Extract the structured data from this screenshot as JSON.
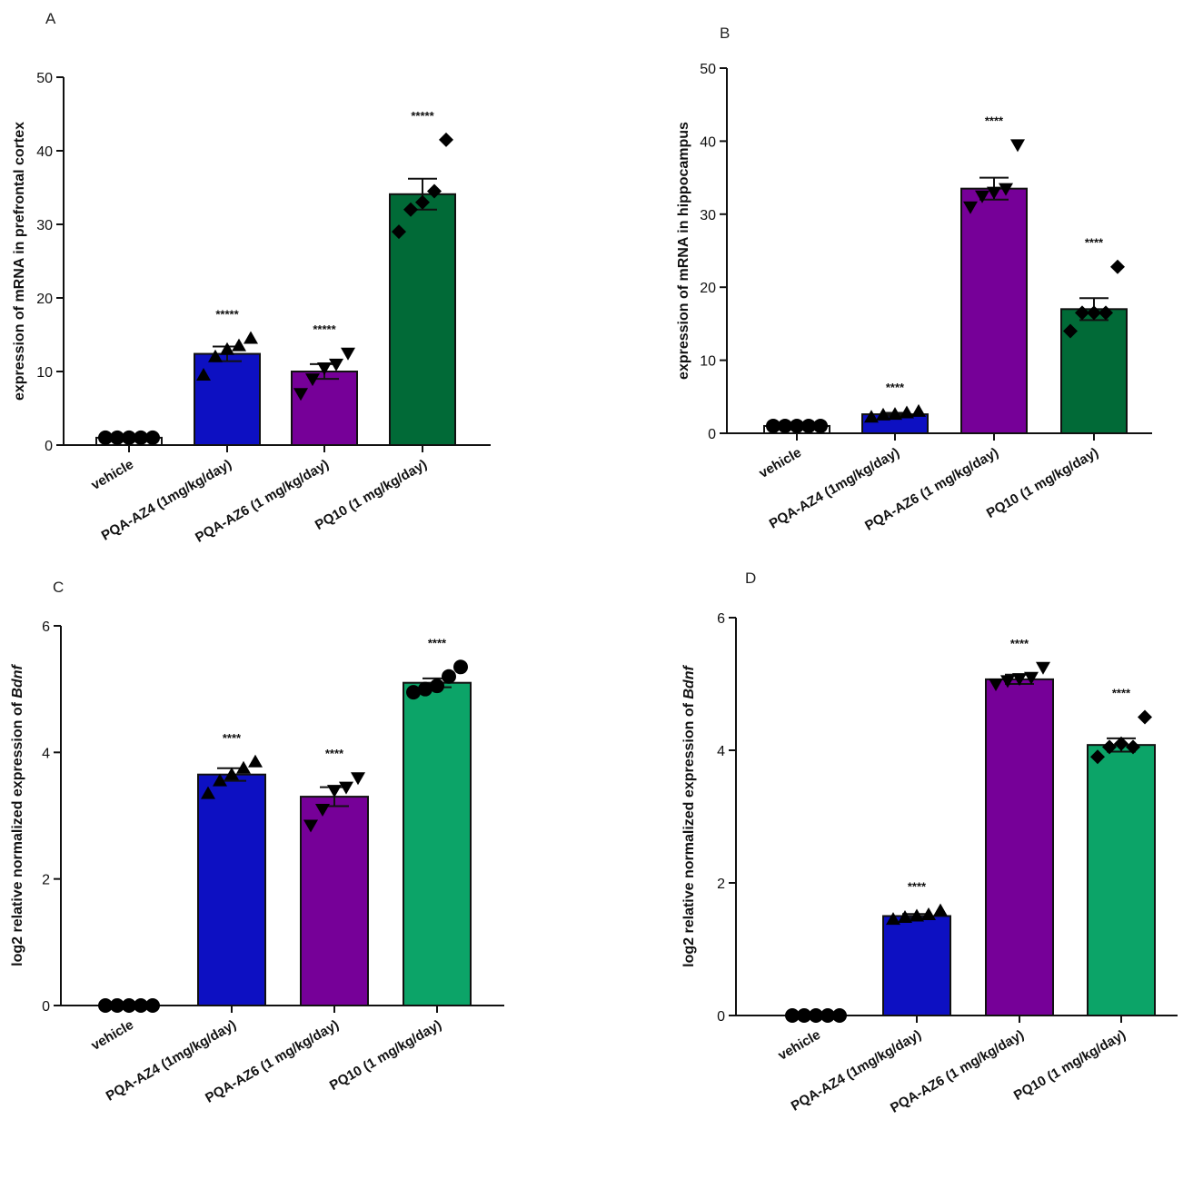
{
  "figure": {
    "colors": {
      "vehicle": "#ffffff",
      "blue": "#0d10c2",
      "purple": "#760098",
      "dark_green": "#016a37",
      "green": "#0ca468"
    }
  },
  "chart_data": [
    {
      "panel": "A",
      "type": "bar",
      "ylabel": "expression of mRNA in prefrontal cortex",
      "ylabel_italic_suffix": "",
      "ylim": [
        0,
        50
      ],
      "yticks": [
        0,
        10,
        20,
        30,
        40,
        50
      ],
      "categories": [
        "vehicle",
        "PQA-AZ4 (1mg/kg/day)",
        "PQA-AZ6 (1 mg/kg/day)",
        "PQ10 (1 mg/kg/day)"
      ],
      "values": [
        1,
        12.4,
        10,
        34.1
      ],
      "sem": [
        0,
        1,
        1,
        2.1
      ],
      "significance": [
        "",
        "*****",
        "*****",
        "*****"
      ],
      "bar_colors": [
        "#ffffff",
        "#0d10c2",
        "#760098",
        "#016a37"
      ],
      "markers": [
        "circle",
        "triangle-up",
        "triangle-down",
        "diamond"
      ],
      "points": [
        [
          1,
          1,
          1,
          1,
          1
        ],
        [
          9.5,
          12,
          13,
          13.5,
          14.5
        ],
        [
          7,
          9,
          10.5,
          11,
          12.5
        ],
        [
          29,
          32,
          33,
          34.5,
          41.5
        ]
      ]
    },
    {
      "panel": "B",
      "type": "bar",
      "ylabel": "expression of mRNA in hippocampus",
      "ylabel_italic_suffix": "",
      "ylim": [
        0,
        50
      ],
      "yticks": [
        0,
        10,
        20,
        30,
        40,
        50
      ],
      "categories": [
        "vehicle",
        "PQA-AZ4 (1mg/kg/day)",
        "PQA-AZ6 (1 mg/kg/day)",
        "PQ10 (1 mg/kg/day)"
      ],
      "values": [
        1,
        2.6,
        33.5,
        17
      ],
      "sem": [
        0,
        0.2,
        1.5,
        1.5
      ],
      "significance": [
        "",
        "****",
        "****",
        "****"
      ],
      "bar_colors": [
        "#ffffff",
        "#0d10c2",
        "#760098",
        "#016a37"
      ],
      "markers": [
        "circle",
        "triangle-up",
        "triangle-down",
        "diamond"
      ],
      "points": [
        [
          1,
          1,
          1,
          1,
          1
        ],
        [
          2.2,
          2.5,
          2.6,
          2.8,
          3
        ],
        [
          31,
          32.5,
          33,
          33.5,
          39.5
        ],
        [
          14,
          16.5,
          16.5,
          16.5,
          22.8
        ]
      ]
    },
    {
      "panel": "C",
      "type": "bar",
      "ylabel": "log2 relative normalized expression of ",
      "ylabel_italic_suffix": "Bdnf",
      "ylim": [
        0,
        6
      ],
      "yticks": [
        0,
        2,
        4,
        6
      ],
      "categories": [
        "vehicle",
        "PQA-AZ4 (1mg/kg/day)",
        "PQA-AZ6 (1 mg/kg/day)",
        "PQ10 (1 mg/kg/day)"
      ],
      "values": [
        0,
        3.65,
        3.3,
        5.1
      ],
      "sem": [
        0,
        0.1,
        0.15,
        0.07
      ],
      "significance": [
        "",
        "****",
        "****",
        "****"
      ],
      "bar_colors": [
        "#ffffff",
        "#0d10c2",
        "#760098",
        "#0ca468"
      ],
      "markers": [
        "circle",
        "triangle-up",
        "triangle-down",
        "circle"
      ],
      "points": [
        [
          0,
          0,
          0,
          0,
          0
        ],
        [
          3.35,
          3.55,
          3.65,
          3.75,
          3.85
        ],
        [
          2.85,
          3.1,
          3.4,
          3.45,
          3.6
        ],
        [
          4.95,
          5.0,
          5.05,
          5.2,
          5.35
        ]
      ]
    },
    {
      "panel": "D",
      "type": "bar",
      "ylabel": "log2 relative normalized expression of ",
      "ylabel_italic_suffix": "Bdnf",
      "ylim": [
        0,
        6
      ],
      "yticks": [
        0,
        2,
        4,
        6
      ],
      "categories": [
        "vehicle",
        "PQA-AZ4 (1mg/kg/day)",
        "PQA-AZ6 (1 mg/kg/day)",
        "PQ10 (1 mg/kg/day)"
      ],
      "values": [
        0,
        1.5,
        5.07,
        4.08
      ],
      "sem": [
        0,
        0.03,
        0.07,
        0.1
      ],
      "significance": [
        "",
        "****",
        "****",
        "****"
      ],
      "bar_colors": [
        "#ffffff",
        "#0d10c2",
        "#760098",
        "#0ca468"
      ],
      "markers": [
        "circle",
        "triangle-up",
        "triangle-down",
        "diamond"
      ],
      "points": [
        [
          0,
          0,
          0,
          0,
          0
        ],
        [
          1.45,
          1.48,
          1.5,
          1.52,
          1.58
        ],
        [
          5.0,
          5.05,
          5.08,
          5.1,
          5.25
        ],
        [
          3.9,
          4.05,
          4.1,
          4.05,
          4.5
        ]
      ]
    }
  ]
}
